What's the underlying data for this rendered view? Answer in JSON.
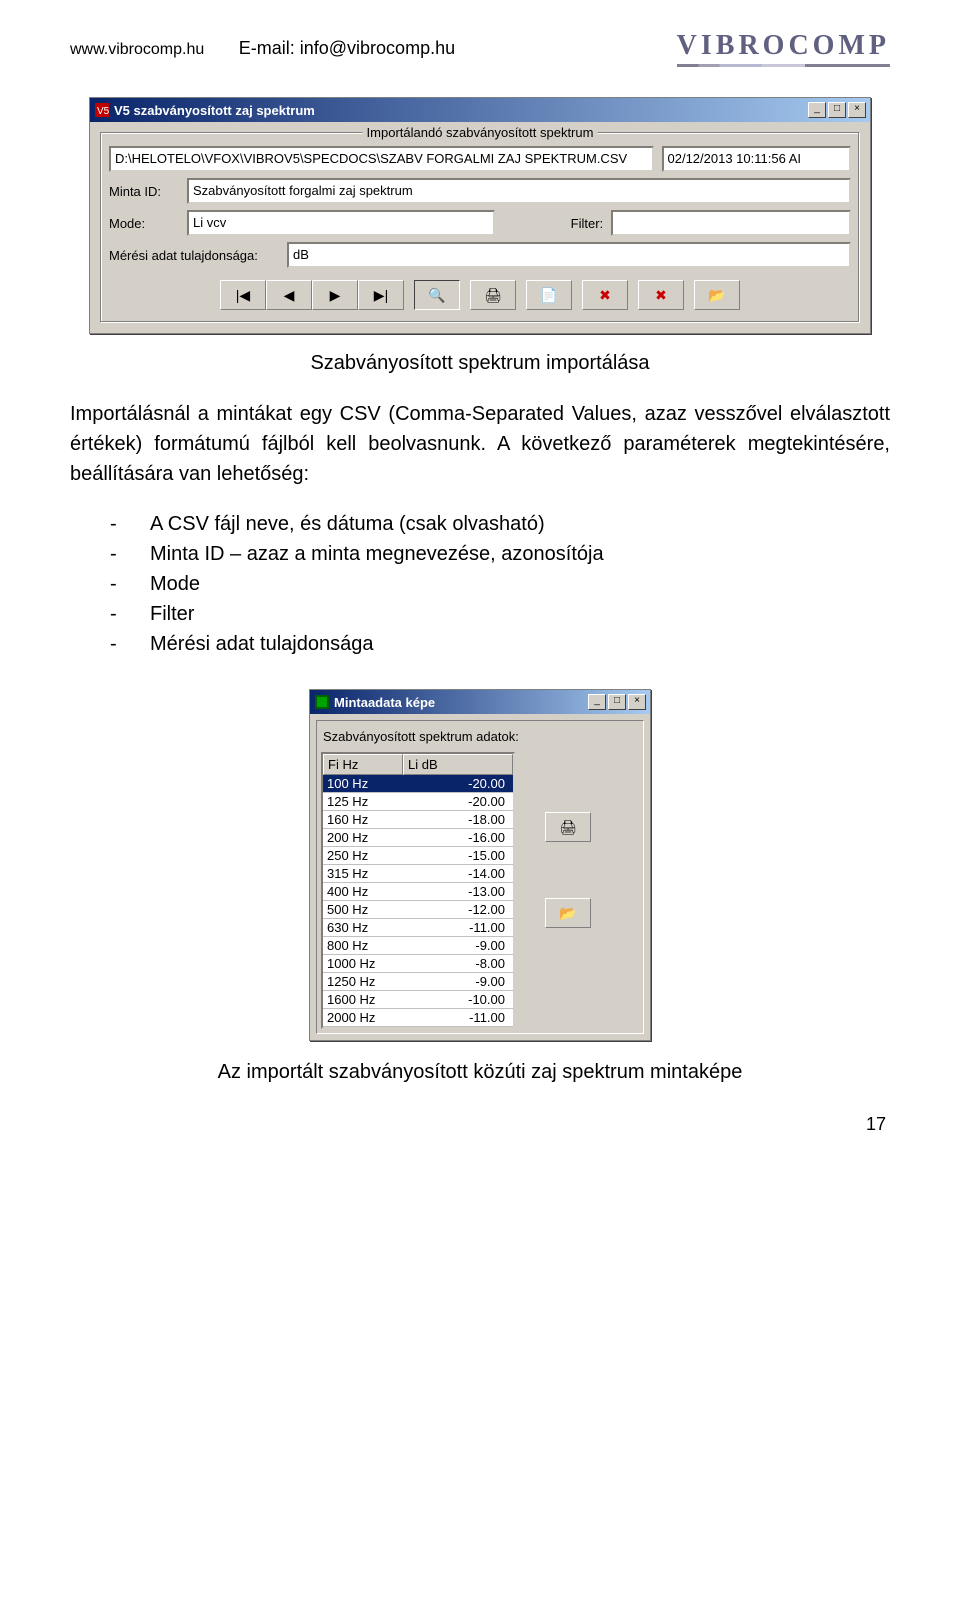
{
  "header": {
    "website": "www.vibrocomp.hu",
    "email_label": "E-mail: ",
    "email": "info@vibrocomp.hu",
    "logo": "VIBROCOMP"
  },
  "dialog1": {
    "title": "V5 szabványosított zaj spektrum",
    "group_title": "Importálandó szabványosított spektrum",
    "path": "D:\\HELOTELO\\VFOX\\VIBROV5\\SPECDOCS\\SZABV FORGALMI ZAJ SPEKTRUM.CSV",
    "datetime": "02/12/2013 10:11:56 AI",
    "minta_id_label": "Minta ID:",
    "minta_id": "Szabványosított forgalmi zaj spektrum",
    "mode_label": "Mode:",
    "mode": "Li vcv",
    "filter_label": "Filter:",
    "filter": "",
    "meresi_label": "Mérési adat tulajdonsága:",
    "meresi": "dB",
    "btn_first": "|◀",
    "btn_prev": "◀",
    "btn_next": "▶",
    "btn_last": "▶|",
    "btn_find": "🔍",
    "btn_print": "🖨",
    "btn_new": "📄",
    "btn_del": "✖",
    "btn_del2": "✖",
    "btn_open": "📂"
  },
  "caption1": "Szabványosított spektrum importálása",
  "para1": "Importálásnál a mintákat egy CSV (Comma-Separated Values, azaz vesszővel elválasztott értékek) formátumú fájlból kell beolvasnunk. A következő paraméterek megtekintésére, beállítására van lehetőség:",
  "params": [
    "A CSV fájl neve, és dátuma (csak olvasható)",
    "Minta ID – azaz a minta megnevezése, azonosítója",
    "Mode",
    "Filter",
    "Mérési adat tulajdonsága"
  ],
  "dialog2": {
    "title": "Mintaadata képe",
    "panel_title": "Szabványosított spektrum adatok:",
    "col1": "Fi Hz",
    "col2": "Li dB",
    "rows": [
      {
        "hz": "100 Hz",
        "db": "-20.00",
        "sel": true
      },
      {
        "hz": "125 Hz",
        "db": "-20.00"
      },
      {
        "hz": "160 Hz",
        "db": "-18.00"
      },
      {
        "hz": "200 Hz",
        "db": "-16.00"
      },
      {
        "hz": "250 Hz",
        "db": "-15.00"
      },
      {
        "hz": "315 Hz",
        "db": "-14.00"
      },
      {
        "hz": "400 Hz",
        "db": "-13.00"
      },
      {
        "hz": "500 Hz",
        "db": "-12.00"
      },
      {
        "hz": "630 Hz",
        "db": "-11.00"
      },
      {
        "hz": "800 Hz",
        "db": "-9.00"
      },
      {
        "hz": "1000 Hz",
        "db": "-8.00"
      },
      {
        "hz": "1250 Hz",
        "db": "-9.00"
      },
      {
        "hz": "1600 Hz",
        "db": "-10.00"
      },
      {
        "hz": "2000 Hz",
        "db": "-11.00"
      }
    ],
    "btn_print": "🖨",
    "btn_open": "📂"
  },
  "caption2": "Az importált szabványosított közúti zaj spektrum mintaképe",
  "page_number": "17"
}
